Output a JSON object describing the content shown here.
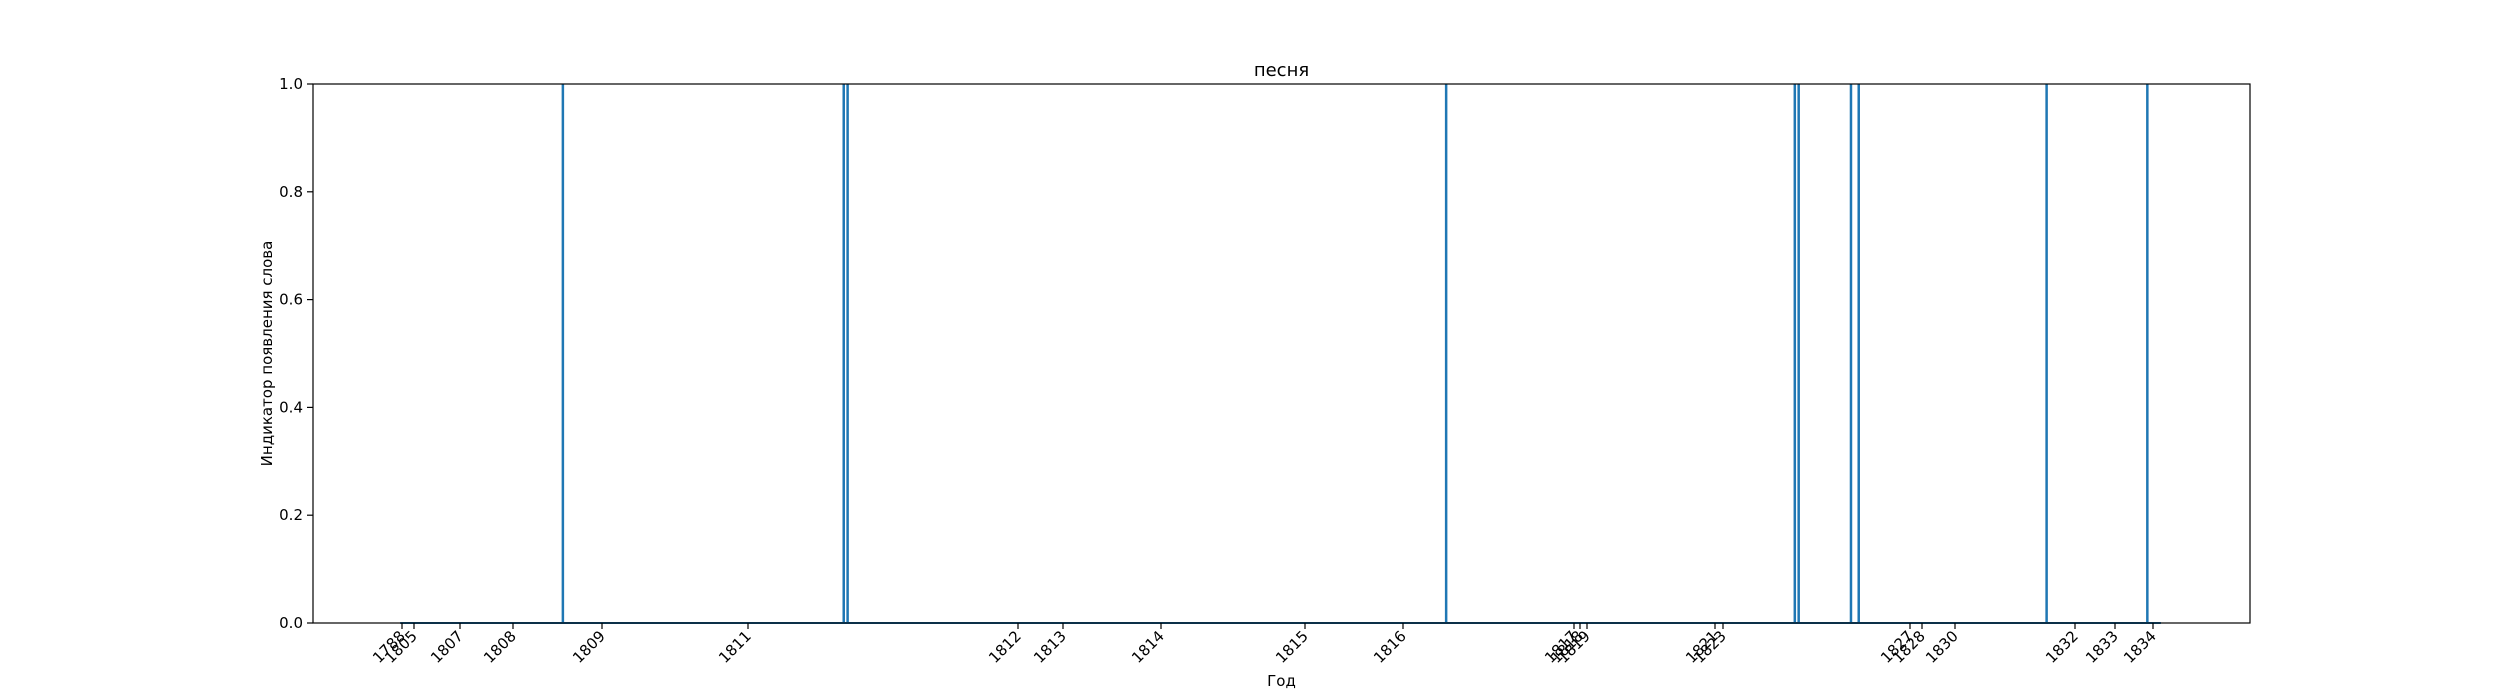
{
  "chart_data": {
    "type": "line",
    "title": "песня",
    "xlabel": "Год",
    "ylabel": "Индикатор появления слова",
    "ylim": [
      0,
      1.0
    ],
    "y_ticks": [
      "0.0",
      "0.2",
      "0.4",
      "0.6",
      "0.8",
      "1.0"
    ],
    "y_tick_values": [
      0,
      0.2,
      0.4,
      0.6,
      0.8,
      1.0
    ],
    "x_tick_labels": [
      "1788",
      "1805",
      "1807",
      "1808",
      "1809",
      "1811",
      "1812",
      "1813",
      "1814",
      "1815",
      "1816",
      "1817",
      "1818",
      "1819",
      "1821",
      "1823",
      "1827",
      "1828",
      "1830",
      "1832",
      "1833",
      "1834"
    ],
    "x_tick_rotation_deg": 45,
    "grid": false,
    "color": "#1f77b4",
    "series": [
      {
        "spike_positions_fraction_of_axis": [
          0.129,
          0.274,
          0.276,
          0.585,
          0.765,
          0.767,
          0.794,
          0.798,
          0.895,
          0.947
        ]
      }
    ]
  }
}
